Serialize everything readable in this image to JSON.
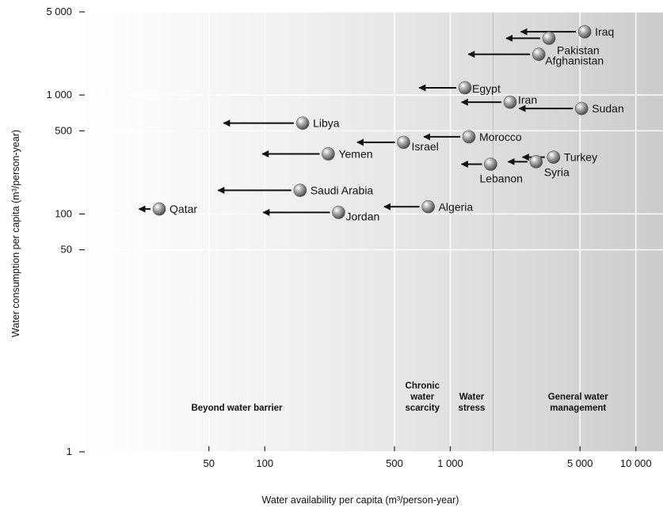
{
  "chart_data": {
    "type": "scatter",
    "xlabel": "Water availability per capita (m³/person-year)",
    "ylabel": "Water consumption per capita (m³/person-year)",
    "x_scale": "log",
    "y_scale": "log",
    "xlim": [
      10,
      14000
    ],
    "ylim": [
      1,
      5000
    ],
    "grid": true,
    "x_ticks": [
      {
        "value": 50,
        "label": "50"
      },
      {
        "value": 100,
        "label": "100"
      },
      {
        "value": 500,
        "label": "500"
      },
      {
        "value": 1000,
        "label": "1 000"
      },
      {
        "value": 5000,
        "label": "5 000"
      },
      {
        "value": 10000,
        "label": "10 000"
      }
    ],
    "y_ticks": [
      {
        "value": 1,
        "label": "1"
      },
      {
        "value": 50,
        "label": "50"
      },
      {
        "value": 100,
        "label": "100"
      },
      {
        "value": 500,
        "label": "500"
      },
      {
        "value": 1000,
        "label": "1 000"
      },
      {
        "value": 5000,
        "label": "5 000"
      }
    ],
    "zones": [
      {
        "lines": [
          "Beyond water barrier"
        ],
        "x_from": 10,
        "x_to": 500
      },
      {
        "lines": [
          "Chronic",
          "water",
          "scarcity"
        ],
        "x_from": 500,
        "x_to": 1000
      },
      {
        "lines": [
          "Water",
          "stress"
        ],
        "x_from": 1000,
        "x_to": 1700
      },
      {
        "lines": [
          "General water",
          "management"
        ],
        "x_from": 1700,
        "x_to": 14000
      }
    ],
    "points": [
      {
        "name": "Iraq",
        "x": 5300,
        "y": 3400,
        "arrow_to_x": 2400
      },
      {
        "name": "Pakistan",
        "x": 3400,
        "y": 3000,
        "arrow_to_x": 2000
      },
      {
        "name": "Afghanistan",
        "x": 3000,
        "y": 2200,
        "arrow_to_x": 1250
      },
      {
        "name": "Egypt",
        "x": 1200,
        "y": 1150,
        "arrow_to_x": 680
      },
      {
        "name": "Iran",
        "x": 2100,
        "y": 870,
        "arrow_to_x": 1150
      },
      {
        "name": "Sudan",
        "x": 5100,
        "y": 770,
        "arrow_to_x": 2350
      },
      {
        "name": "Libya",
        "x": 160,
        "y": 580,
        "arrow_to_x": 60
      },
      {
        "name": "Morocco",
        "x": 1260,
        "y": 445,
        "arrow_to_x": 720
      },
      {
        "name": "Israel",
        "x": 560,
        "y": 400,
        "arrow_to_x": 315
      },
      {
        "name": "Yemen",
        "x": 220,
        "y": 320,
        "arrow_to_x": 97
      },
      {
        "name": "Turkey",
        "x": 3600,
        "y": 300,
        "arrow_to_x": 2450
      },
      {
        "name": "Syria",
        "x": 2900,
        "y": 275,
        "arrow_to_x": 2050
      },
      {
        "name": "Lebanon",
        "x": 1650,
        "y": 262,
        "arrow_to_x": 1150
      },
      {
        "name": "Saudi Arabia",
        "x": 155,
        "y": 158,
        "arrow_to_x": 56
      },
      {
        "name": "Algeria",
        "x": 760,
        "y": 115,
        "arrow_to_x": 440
      },
      {
        "name": "Qatar",
        "x": 27,
        "y": 110,
        "arrow_to_x": 21
      },
      {
        "name": "Jordan",
        "x": 250,
        "y": 103,
        "arrow_to_x": 98
      }
    ]
  }
}
